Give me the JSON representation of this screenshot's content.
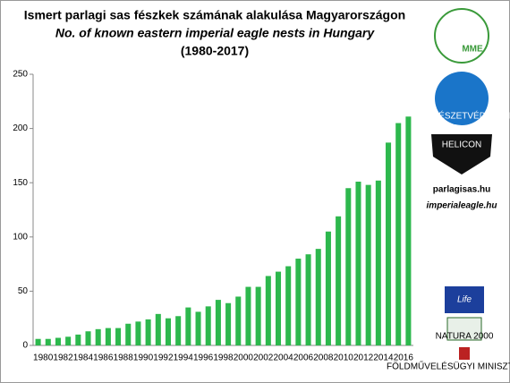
{
  "chart_data": {
    "type": "bar",
    "title": "Ismert parlagi sas fészkek számának alakulása Magyarországon",
    "subtitle": "No. of known eastern imperial eagle nests in Hungary",
    "period": "(1980-2017)",
    "categories": [
      "1980",
      null,
      "1982",
      null,
      "1984",
      null,
      "1986",
      null,
      "1988",
      null,
      "1990",
      null,
      "1992",
      null,
      "1994",
      null,
      "1996",
      null,
      "1998",
      null,
      "2000",
      null,
      "2002",
      null,
      "2004",
      null,
      "2006",
      null,
      "2008",
      null,
      "2010",
      null,
      "2012",
      null,
      "2014",
      null,
      "2016",
      null
    ],
    "values": [
      6,
      6,
      7,
      8,
      10,
      13,
      15,
      16,
      16,
      20,
      22,
      24,
      29,
      25,
      27,
      35,
      31,
      36,
      42,
      39,
      45,
      54,
      54,
      64,
      68,
      73,
      80,
      84,
      89,
      105,
      119,
      145,
      151,
      148,
      152,
      187,
      205,
      211
    ],
    "color": "#2db84d",
    "ylim": [
      0,
      250
    ],
    "yticks": [
      0,
      50,
      100,
      150,
      200,
      250
    ],
    "grid": false
  },
  "sidebar": {
    "links": [
      "parlagisas.hu",
      "imperialeagle.hu"
    ],
    "logos": [
      "MME",
      "TERMÉSZETVÉDELEM",
      "HELICON",
      "Life",
      "NATURA 2000",
      "FÖLDMŰVELÉSÜGYI MINISZTÉRIUM"
    ]
  }
}
